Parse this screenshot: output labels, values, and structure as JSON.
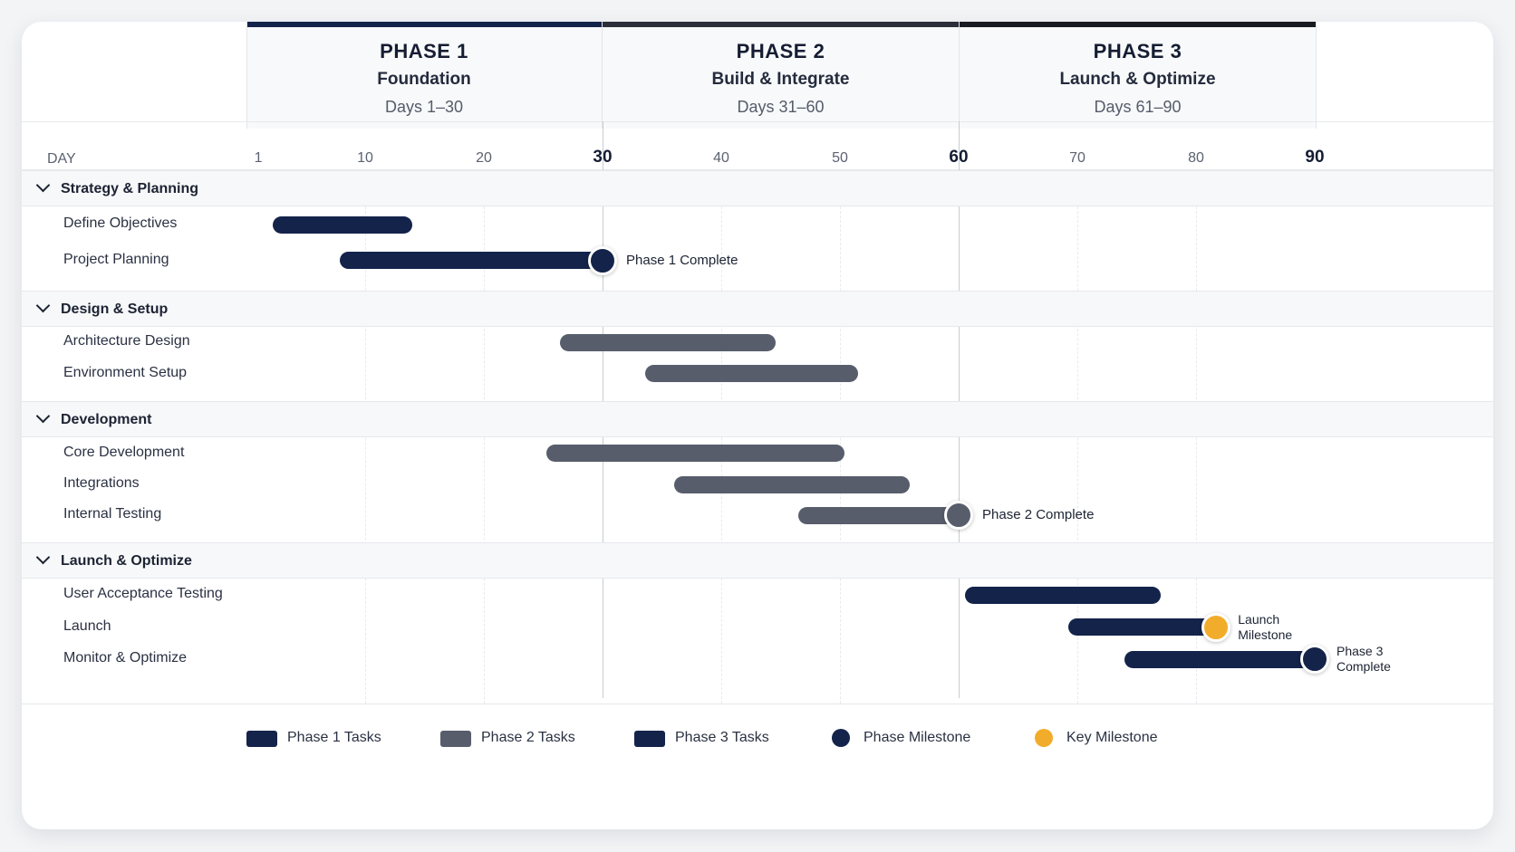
{
  "colors": {
    "phase1": "#13234a",
    "phase2": "#575d6b",
    "phase3": "#13234a",
    "phase_milestone": "#13234a",
    "key_milestone": "#f2ac2b",
    "phase_header_bar_1": "#13234a",
    "phase_header_bar_2": "#2a2f3a",
    "phase_header_bar_3": "#181b22"
  },
  "phases": [
    {
      "num": "PHASE 1",
      "name": "Foundation",
      "days": "Days 1–30"
    },
    {
      "num": "PHASE 2",
      "name": "Build & Integrate",
      "days": "Days 31–60"
    },
    {
      "num": "PHASE 3",
      "name": "Launch & Optimize",
      "days": "Days 61–90"
    }
  ],
  "axis": {
    "label": "DAY",
    "ticks": [
      "1",
      "10",
      "20",
      "30",
      "40",
      "50",
      "60",
      "70",
      "80",
      "90"
    ],
    "major_ticks": [
      "30",
      "60",
      "90"
    ]
  },
  "legend": {
    "phase1": "Phase 1 Tasks",
    "phase2": "Phase 2 Tasks",
    "phase3": "Phase 3 Tasks",
    "phase_milestone": "Phase Milestone",
    "key_milestone": "Key Milestone"
  },
  "chart_data": {
    "type": "gantt",
    "xlabel": "DAY",
    "xlim": [
      1,
      90
    ],
    "groups": [
      {
        "name": "Strategy & Planning",
        "tasks": [
          {
            "name": "Define Objectives",
            "start": 2.2,
            "end": 14.0,
            "phase": 1
          },
          {
            "name": "Project Planning",
            "start": 7.9,
            "end": 30,
            "phase": 1,
            "milestone": {
              "day": 30,
              "label": "Phase 1 Complete",
              "kind": "phase"
            }
          }
        ]
      },
      {
        "name": "Design & Setup",
        "tasks": [
          {
            "name": "Architecture Design",
            "start": 26.4,
            "end": 44.6,
            "phase": 2
          },
          {
            "name": "Environment Setup",
            "start": 33.6,
            "end": 51.5,
            "phase": 2
          }
        ]
      },
      {
        "name": "Development",
        "tasks": [
          {
            "name": "Core Development",
            "start": 25.3,
            "end": 50.4,
            "phase": 2
          },
          {
            "name": "Integrations",
            "start": 36.0,
            "end": 55.9,
            "phase": 2
          },
          {
            "name": "Internal Testing",
            "start": 46.5,
            "end": 60,
            "phase": 2,
            "milestone": {
              "day": 60,
              "label": "Phase 2 Complete",
              "kind": "phase"
            }
          }
        ]
      },
      {
        "name": "Launch & Optimize",
        "tasks": [
          {
            "name": "User Acceptance Testing",
            "start": 60.5,
            "end": 77.0,
            "phase": 3
          },
          {
            "name": "Launch",
            "start": 69.2,
            "end": 81.7,
            "phase": 3,
            "milestone": {
              "day": 81.7,
              "label": "Launch Milestone",
              "kind": "key"
            }
          },
          {
            "name": "Monitor & Optimize",
            "start": 74.0,
            "end": 90,
            "phase": 3,
            "milestone": {
              "day": 90,
              "label": "Phase 3 Complete",
              "kind": "phase"
            }
          }
        ]
      }
    ]
  }
}
